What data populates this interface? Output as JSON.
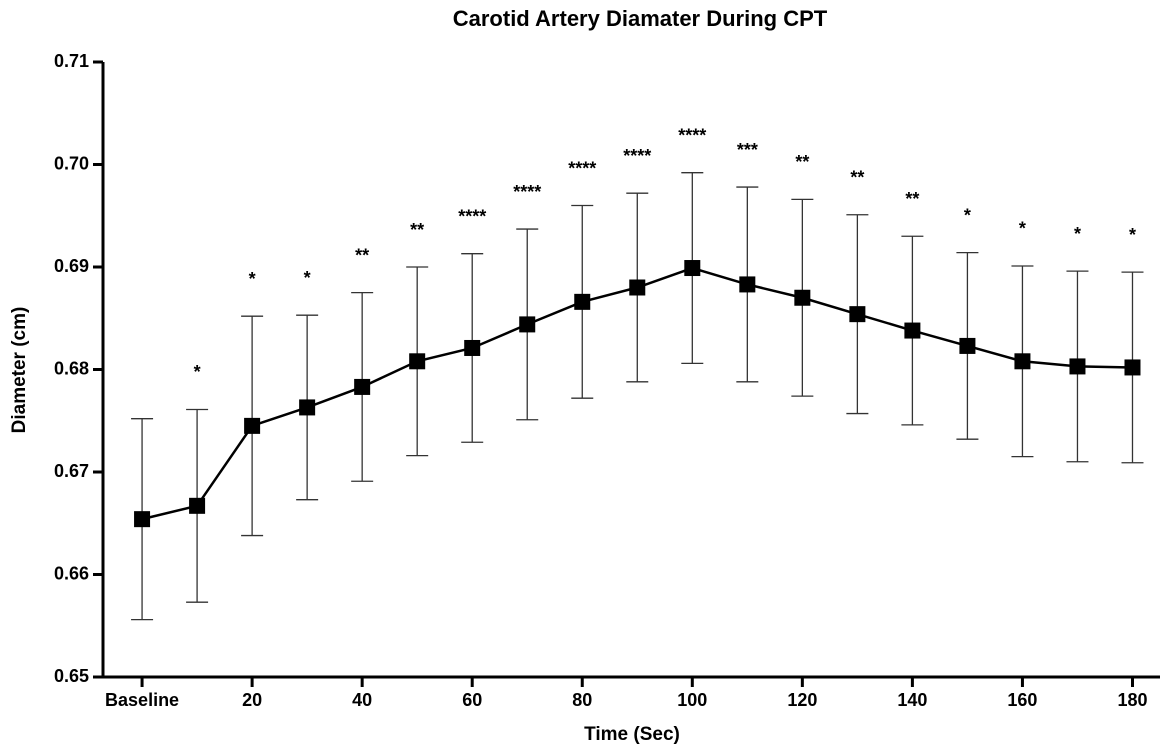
{
  "chart_data": {
    "type": "line",
    "title": "Carotid Artery Diamater During CPT",
    "x_label": "Time (Sec)",
    "y_label": "Diameter (cm)",
    "x": [
      0,
      10,
      20,
      30,
      40,
      50,
      60,
      70,
      80,
      90,
      100,
      110,
      120,
      130,
      140,
      150,
      160,
      170,
      180
    ],
    "values": [
      0.6654,
      0.6667,
      0.6745,
      0.6763,
      0.6783,
      0.6808,
      0.6821,
      0.6844,
      0.6866,
      0.688,
      0.6899,
      0.6883,
      0.687,
      0.6854,
      0.6838,
      0.6823,
      0.6808,
      0.6803,
      0.6802
    ],
    "errors": [
      0.0098,
      0.0094,
      0.0107,
      0.009,
      0.0092,
      0.0092,
      0.0092,
      0.0093,
      0.0094,
      0.0092,
      0.0093,
      0.0095,
      0.0096,
      0.0097,
      0.0092,
      0.0091,
      0.0093,
      0.0093,
      0.0093
    ],
    "annotations": [
      null,
      "*",
      "*",
      "*",
      "**",
      "**",
      "****",
      "****",
      "****",
      "****",
      "****",
      "***",
      "**",
      "**",
      "**",
      "*",
      "*",
      "*",
      "*"
    ],
    "color": "#000000",
    "xlim": [
      -7.1,
      185
    ],
    "ylim": [
      0.65,
      0.71
    ],
    "xticks": [
      {
        "value": 0,
        "label": "Baseline"
      },
      20,
      40,
      60,
      80,
      100,
      120,
      140,
      160,
      180
    ],
    "yticks": [
      0.65,
      0.66,
      0.67,
      0.68,
      0.69,
      {
        "value": 0.7,
        "label": "0.70"
      },
      0.71
    ]
  }
}
